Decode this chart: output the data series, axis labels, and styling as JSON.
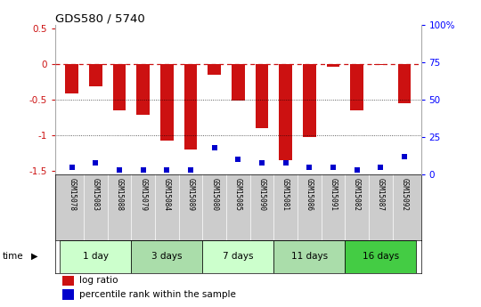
{
  "title": "GDS580 / 5740",
  "samples": [
    "GSM15078",
    "GSM15083",
    "GSM15088",
    "GSM15079",
    "GSM15084",
    "GSM15089",
    "GSM15080",
    "GSM15085",
    "GSM15090",
    "GSM15081",
    "GSM15086",
    "GSM15091",
    "GSM15082",
    "GSM15087",
    "GSM15092"
  ],
  "log_ratio": [
    -0.42,
    -0.32,
    -0.65,
    -0.72,
    -1.08,
    -1.2,
    -0.15,
    -0.52,
    -0.9,
    -1.35,
    -1.02,
    -0.04,
    -0.65,
    -0.02,
    -0.55
  ],
  "percentile_rank": [
    5,
    8,
    3,
    3,
    3,
    3,
    18,
    10,
    8,
    8,
    5,
    5,
    3,
    5,
    12
  ],
  "groups": [
    {
      "label": "1 day",
      "indices": [
        0,
        1,
        2
      ],
      "color": "#ccffcc"
    },
    {
      "label": "3 days",
      "indices": [
        3,
        4,
        5
      ],
      "color": "#aaddaa"
    },
    {
      "label": "7 days",
      "indices": [
        6,
        7,
        8
      ],
      "color": "#ccffcc"
    },
    {
      "label": "11 days",
      "indices": [
        9,
        10,
        11
      ],
      "color": "#aaddaa"
    },
    {
      "label": "16 days",
      "indices": [
        12,
        13,
        14
      ],
      "color": "#44cc44"
    }
  ],
  "ylim_left": [
    -1.55,
    0.55
  ],
  "ylim_right": [
    0,
    100
  ],
  "yticks_left": [
    -1.5,
    -1.0,
    -0.5,
    0.0,
    0.5
  ],
  "yticks_right": [
    0,
    25,
    50,
    75,
    100
  ],
  "bar_color": "#cc1111",
  "dot_color": "#0000cc",
  "grid_lines": [
    -0.5,
    -1.0
  ],
  "background_color": "#ffffff",
  "legend_bar_label": "log ratio",
  "legend_dot_label": "percentile rank within the sample"
}
